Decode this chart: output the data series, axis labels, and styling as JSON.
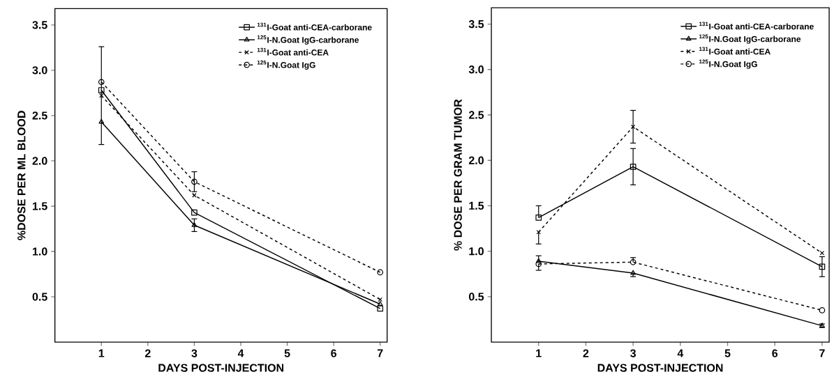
{
  "chart_data": [
    {
      "type": "line",
      "xlabel": "DAYS POST-INJECTION",
      "ylabel": "%DOSE PER ML BLOOD",
      "x": [
        1,
        3,
        7
      ],
      "xlim": [
        0,
        7.15
      ],
      "xticks": [
        1,
        2,
        3,
        4,
        5,
        6,
        7
      ],
      "ylim": [
        0,
        3.68
      ],
      "yticks": [
        0.5,
        {
          "value": 1,
          "label": "1.0"
        },
        1.5,
        {
          "value": 2,
          "label": "2.0"
        },
        2.5,
        {
          "value": 3,
          "label": "3.0"
        },
        3.5
      ],
      "legend": "top right",
      "grid": false,
      "series": [
        {
          "name": "$^{131}$I-Goat anti-CEA-carborane",
          "color": "#000000",
          "marker": "square",
          "line_style": "solid",
          "values": [
            2.78,
            1.43,
            0.37
          ]
        },
        {
          "name": "$^{125}$I-N.Goat IgG-carborane",
          "color": "#000000",
          "marker": "triangle",
          "line_style": "solid",
          "values": [
            2.43,
            1.29,
            0.42
          ],
          "errors": [
            null,
            0.07,
            null
          ]
        },
        {
          "name": "$^{131}$I-Goat anti-CEA",
          "color": "#000000",
          "marker": "cross",
          "line_style": "dashed",
          "values": [
            2.72,
            1.62,
            0.47
          ],
          "errors": [
            0.54,
            null,
            null
          ]
        },
        {
          "name": "$^{125}$I-N.Goat IgG",
          "color": "#000000",
          "marker": "circle",
          "line_style": "dashed",
          "values": [
            2.87,
            1.77,
            0.77
          ],
          "errors": [
            null,
            0.11,
            null
          ]
        }
      ]
    },
    {
      "type": "line",
      "xlabel": "DAYS POST-INJECTION",
      "ylabel": "% DOSE PER GRAM TUMOR",
      "x": [
        1,
        3,
        7
      ],
      "xlim": [
        0,
        7.15
      ],
      "xticks": [
        1,
        2,
        3,
        4,
        5,
        6,
        7
      ],
      "ylim": [
        0,
        3.68
      ],
      "yticks": [
        0.5,
        {
          "value": 1,
          "label": "1.0"
        },
        1.5,
        {
          "value": 2,
          "label": "2.0"
        },
        2.5,
        {
          "value": 3,
          "label": "3.0"
        },
        3.5
      ],
      "legend": "top right",
      "grid": false,
      "series": [
        {
          "name": "$^{131}$I-Goat anti-CEA-carborane",
          "color": "#000000",
          "marker": "square",
          "line_style": "solid",
          "values": [
            1.37,
            1.93,
            0.83
          ],
          "errors": [
            [
              1.37,
              1.5
            ],
            0.2,
            0.11
          ]
        },
        {
          "name": "$^{125}$I-N.Goat IgG-carborane",
          "color": "#000000",
          "marker": "triangle",
          "line_style": "solid",
          "values": [
            0.89,
            0.76,
            0.18
          ],
          "errors": [
            [
              0.89,
              0.95
            ],
            [
              0.72,
              0.76
            ],
            0.02
          ]
        },
        {
          "name": "$^{131}$I-Goat anti-CEA",
          "color": "#000000",
          "marker": "cross",
          "line_style": "dashed",
          "values": [
            1.21,
            2.37,
            0.98
          ],
          "errors": [
            [
              1.08,
              1.21
            ],
            0.18,
            null
          ]
        },
        {
          "name": "$^{125}$I-N.Goat IgG",
          "color": "#000000",
          "marker": "circle",
          "line_style": "dashed",
          "values": [
            0.86,
            0.88,
            0.35
          ],
          "errors": [
            [
              0.79,
              0.86
            ],
            [
              0.88,
              0.93
            ],
            null
          ]
        }
      ]
    }
  ]
}
